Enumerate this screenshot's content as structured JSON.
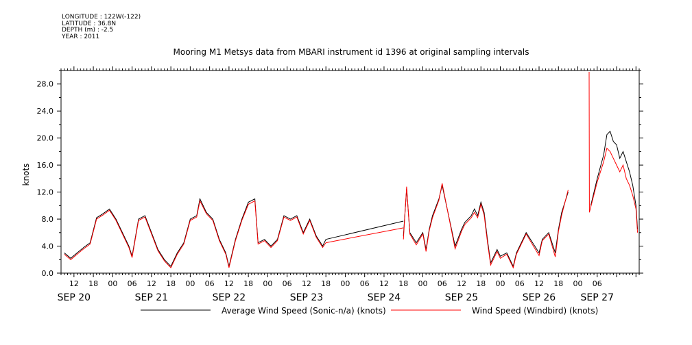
{
  "header": {
    "longitude": "LONGITUDE : 122W(-122)",
    "latitude": "LATITUDE : 36.8N",
    "depth": "DEPTH (m) : -2.5",
    "year": "YEAR : 2011"
  },
  "colors": {
    "average_series": "#000000",
    "windbird_series": "#ff0000"
  },
  "chart_data": {
    "type": "line",
    "title": "Mooring M1 Metsys data from MBARI instrument id 1396 at original sampling intervals",
    "ylabel": "knots",
    "xlabel": "",
    "ylim": [
      0,
      30
    ],
    "xlim": [
      "2011-09-20 08:00",
      "2011-09-27 19:00"
    ],
    "y_ticks": [
      "0.0",
      "4.0",
      "8.0",
      "12.0",
      "16.0",
      "20.0",
      "24.0",
      "28.0"
    ],
    "x_hour_ticks": [
      {
        "t": "2011-09-20 12:00",
        "label": "12"
      },
      {
        "t": "2011-09-20 18:00",
        "label": "18"
      },
      {
        "t": "2011-09-21 00:00",
        "label": "00"
      },
      {
        "t": "2011-09-21 06:00",
        "label": "06"
      },
      {
        "t": "2011-09-21 12:00",
        "label": "12"
      },
      {
        "t": "2011-09-21 18:00",
        "label": "18"
      },
      {
        "t": "2011-09-22 00:00",
        "label": "00"
      },
      {
        "t": "2011-09-22 06:00",
        "label": "06"
      },
      {
        "t": "2011-09-22 12:00",
        "label": "12"
      },
      {
        "t": "2011-09-22 18:00",
        "label": "18"
      },
      {
        "t": "2011-09-23 00:00",
        "label": "00"
      },
      {
        "t": "2011-09-23 06:00",
        "label": "06"
      },
      {
        "t": "2011-09-23 12:00",
        "label": "12"
      },
      {
        "t": "2011-09-23 18:00",
        "label": "18"
      },
      {
        "t": "2011-09-24 00:00",
        "label": "00"
      },
      {
        "t": "2011-09-24 06:00",
        "label": "06"
      },
      {
        "t": "2011-09-24 12:00",
        "label": "12"
      },
      {
        "t": "2011-09-24 18:00",
        "label": "18"
      },
      {
        "t": "2011-09-25 00:00",
        "label": "00"
      },
      {
        "t": "2011-09-25 06:00",
        "label": "06"
      },
      {
        "t": "2011-09-25 12:00",
        "label": "12"
      },
      {
        "t": "2011-09-25 18:00",
        "label": "18"
      },
      {
        "t": "2011-09-26 00:00",
        "label": "00"
      },
      {
        "t": "2011-09-26 06:00",
        "label": "06"
      },
      {
        "t": "2011-09-26 12:00",
        "label": "12"
      },
      {
        "t": "2011-09-26 18:00",
        "label": "18"
      },
      {
        "t": "2011-09-27 00:00",
        "label": "00"
      },
      {
        "t": "2011-09-27 06:00",
        "label": "06"
      }
    ],
    "x_day_labels": [
      {
        "t": "2011-09-20 12:00",
        "label": "SEP 20"
      },
      {
        "t": "2011-09-21 12:00",
        "label": "SEP 21"
      },
      {
        "t": "2011-09-22 12:00",
        "label": "SEP 22"
      },
      {
        "t": "2011-09-23 12:00",
        "label": "SEP 23"
      },
      {
        "t": "2011-09-24 12:00",
        "label": "SEP 24"
      },
      {
        "t": "2011-09-25 12:00",
        "label": "SEP 25"
      },
      {
        "t": "2011-09-26 12:00",
        "label": "SEP 26"
      },
      {
        "t": "2011-09-27 06:00",
        "label": "SEP 27"
      }
    ],
    "legend": [
      "Average Wind Speed (Sonic-n/a) (knots)",
      "Wind Speed (Windbird) (knots)"
    ],
    "series": [
      {
        "name": "Average Wind Speed (Sonic-n/a) (knots)",
        "segments": [
          [
            [
              "2011-09-20 09:00",
              3.0
            ],
            [
              "2011-09-20 11:00",
              2.2
            ],
            [
              "2011-09-20 13:00",
              3.0
            ],
            [
              "2011-09-20 15:00",
              3.8
            ],
            [
              "2011-09-20 17:00",
              4.5
            ],
            [
              "2011-09-20 19:00",
              8.2
            ],
            [
              "2011-09-20 21:00",
              8.8
            ],
            [
              "2011-09-20 23:00",
              9.5
            ],
            [
              "2011-09-21 01:00",
              8.0
            ],
            [
              "2011-09-21 03:00",
              6.0
            ],
            [
              "2011-09-21 05:00",
              4.0
            ],
            [
              "2011-09-21 06:00",
              2.5
            ],
            [
              "2011-09-21 08:00",
              8.0
            ],
            [
              "2011-09-21 10:00",
              8.5
            ],
            [
              "2011-09-21 12:00",
              6.0
            ],
            [
              "2011-09-21 14:00",
              3.5
            ],
            [
              "2011-09-21 16:00",
              2.0
            ],
            [
              "2011-09-21 18:00",
              1.0
            ],
            [
              "2011-09-21 20:00",
              3.0
            ],
            [
              "2011-09-21 22:00",
              4.5
            ],
            [
              "2011-09-22 00:00",
              8.0
            ],
            [
              "2011-09-22 02:00",
              8.5
            ],
            [
              "2011-09-22 03:00",
              11.0
            ],
            [
              "2011-09-22 05:00",
              9.0
            ],
            [
              "2011-09-22 07:00",
              8.0
            ],
            [
              "2011-09-22 09:00",
              5.0
            ],
            [
              "2011-09-22 11:00",
              3.0
            ],
            [
              "2011-09-22 12:00",
              1.0
            ],
            [
              "2011-09-22 14:00",
              5.0
            ],
            [
              "2011-09-22 16:00",
              8.0
            ],
            [
              "2011-09-22 18:00",
              10.5
            ],
            [
              "2011-09-22 20:00",
              11.0
            ],
            [
              "2011-09-22 21:00",
              4.5
            ],
            [
              "2011-09-22 23:00",
              5.0
            ],
            [
              "2011-09-23 01:00",
              4.0
            ],
            [
              "2011-09-23 03:00",
              5.0
            ],
            [
              "2011-09-23 05:00",
              8.5
            ],
            [
              "2011-09-23 07:00",
              8.0
            ],
            [
              "2011-09-23 09:00",
              8.5
            ],
            [
              "2011-09-23 11:00",
              6.0
            ],
            [
              "2011-09-23 13:00",
              8.0
            ],
            [
              "2011-09-23 15:00",
              5.5
            ],
            [
              "2011-09-23 17:00",
              4.0
            ],
            [
              "2011-09-23 18:00",
              5.0
            ]
          ],
          [
            [
              "2011-09-23 18:00",
              5.0
            ],
            [
              "2011-09-24 18:00",
              7.7
            ]
          ],
          [
            [
              "2011-09-24 18:00",
              5.5
            ],
            [
              "2011-09-24 19:00",
              12.5
            ],
            [
              "2011-09-24 20:00",
              6.0
            ],
            [
              "2011-09-24 22:00",
              4.5
            ],
            [
              "2011-09-25 00:00",
              6.0
            ],
            [
              "2011-09-25 01:00",
              3.5
            ],
            [
              "2011-09-25 02:00",
              6.5
            ],
            [
              "2011-09-25 03:00",
              8.5
            ],
            [
              "2011-09-25 05:00",
              11.0
            ],
            [
              "2011-09-25 06:00",
              13.0
            ],
            [
              "2011-09-25 10:00",
              4.0
            ],
            [
              "2011-09-25 12:00",
              6.5
            ],
            [
              "2011-09-25 13:00",
              7.5
            ],
            [
              "2011-09-25 15:00",
              8.5
            ],
            [
              "2011-09-25 16:00",
              9.5
            ],
            [
              "2011-09-25 17:00",
              8.5
            ],
            [
              "2011-09-25 18:00",
              10.5
            ],
            [
              "2011-09-25 19:00",
              9.0
            ],
            [
              "2011-09-25 20:00",
              5.0
            ],
            [
              "2011-09-25 21:00",
              1.5
            ],
            [
              "2011-09-25 23:00",
              3.5
            ],
            [
              "2011-09-26 00:00",
              2.5
            ],
            [
              "2011-09-26 02:00",
              3.0
            ],
            [
              "2011-09-26 04:00",
              1.0
            ],
            [
              "2011-09-26 05:00",
              3.0
            ],
            [
              "2011-09-26 07:00",
              5.0
            ],
            [
              "2011-09-26 08:00",
              6.0
            ],
            [
              "2011-09-26 10:00",
              4.5
            ],
            [
              "2011-09-26 12:00",
              3.0
            ],
            [
              "2011-09-26 13:00",
              5.0
            ],
            [
              "2011-09-26 15:00",
              6.0
            ],
            [
              "2011-09-26 17:00",
              3.0
            ],
            [
              "2011-09-26 18:00",
              6.5
            ],
            [
              "2011-09-26 19:00",
              9.0
            ],
            [
              "2011-09-26 21:00",
              12.0
            ]
          ],
          [
            [
              "2011-09-27 04:00",
              10.0
            ],
            [
              "2011-09-27 06:00",
              14.0
            ],
            [
              "2011-09-27 08:00",
              17.5
            ],
            [
              "2011-09-27 09:00",
              20.5
            ],
            [
              "2011-09-27 10:00",
              21.0
            ],
            [
              "2011-09-27 11:00",
              19.5
            ],
            [
              "2011-09-27 12:00",
              19.0
            ],
            [
              "2011-09-27 13:00",
              17.0
            ],
            [
              "2011-09-27 14:00",
              18.0
            ],
            [
              "2011-09-27 15:00",
              16.5
            ],
            [
              "2011-09-27 16:00",
              15.0
            ],
            [
              "2011-09-27 17:00",
              13.0
            ],
            [
              "2011-09-27 18:00",
              10.0
            ],
            [
              "2011-09-27 18:30",
              6.5
            ]
          ]
        ]
      },
      {
        "name": "Wind Speed (Windbird) (knots)",
        "segments": [
          [
            [
              "2011-09-20 09:00",
              2.8
            ],
            [
              "2011-09-20 11:00",
              2.0
            ],
            [
              "2011-09-20 13:00",
              2.8
            ],
            [
              "2011-09-20 15:00",
              3.6
            ],
            [
              "2011-09-20 17:00",
              4.3
            ],
            [
              "2011-09-20 19:00",
              8.0
            ],
            [
              "2011-09-20 21:00",
              8.6
            ],
            [
              "2011-09-20 23:00",
              9.3
            ],
            [
              "2011-09-21 01:00",
              7.8
            ],
            [
              "2011-09-21 03:00",
              5.8
            ],
            [
              "2011-09-21 05:00",
              3.8
            ],
            [
              "2011-09-21 06:00",
              2.3
            ],
            [
              "2011-09-21 08:00",
              7.8
            ],
            [
              "2011-09-21 10:00",
              8.3
            ],
            [
              "2011-09-21 12:00",
              5.8
            ],
            [
              "2011-09-21 14:00",
              3.3
            ],
            [
              "2011-09-21 16:00",
              1.8
            ],
            [
              "2011-09-21 18:00",
              0.8
            ],
            [
              "2011-09-21 20:00",
              2.8
            ],
            [
              "2011-09-21 22:00",
              4.3
            ],
            [
              "2011-09-22 00:00",
              7.8
            ],
            [
              "2011-09-22 02:00",
              8.3
            ],
            [
              "2011-09-22 03:00",
              10.7
            ],
            [
              "2011-09-22 05:00",
              8.8
            ],
            [
              "2011-09-22 07:00",
              7.8
            ],
            [
              "2011-09-22 09:00",
              4.8
            ],
            [
              "2011-09-22 11:00",
              2.8
            ],
            [
              "2011-09-22 12:00",
              0.8
            ],
            [
              "2011-09-22 14:00",
              4.8
            ],
            [
              "2011-09-22 16:00",
              7.8
            ],
            [
              "2011-09-22 18:00",
              10.2
            ],
            [
              "2011-09-22 20:00",
              10.7
            ],
            [
              "2011-09-22 21:00",
              4.3
            ],
            [
              "2011-09-22 23:00",
              4.8
            ],
            [
              "2011-09-23 01:00",
              3.8
            ],
            [
              "2011-09-23 03:00",
              4.8
            ],
            [
              "2011-09-23 05:00",
              8.3
            ],
            [
              "2011-09-23 07:00",
              7.8
            ],
            [
              "2011-09-23 09:00",
              8.3
            ],
            [
              "2011-09-23 11:00",
              5.8
            ],
            [
              "2011-09-23 13:00",
              7.8
            ],
            [
              "2011-09-23 15:00",
              5.3
            ],
            [
              "2011-09-23 17:00",
              3.8
            ],
            [
              "2011-09-23 18:00",
              4.5
            ]
          ],
          [
            [
              "2011-09-23 18:00",
              4.5
            ],
            [
              "2011-09-24 18:00",
              6.7
            ]
          ],
          [
            [
              "2011-09-24 18:00",
              5.0
            ],
            [
              "2011-09-24 19:00",
              12.8
            ],
            [
              "2011-09-24 20:00",
              5.8
            ],
            [
              "2011-09-24 22:00",
              4.2
            ],
            [
              "2011-09-25 00:00",
              5.8
            ],
            [
              "2011-09-25 01:00",
              3.2
            ],
            [
              "2011-09-25 02:00",
              6.3
            ],
            [
              "2011-09-25 03:00",
              8.2
            ],
            [
              "2011-09-25 05:00",
              10.8
            ],
            [
              "2011-09-25 06:00",
              13.3
            ],
            [
              "2011-09-25 10:00",
              3.6
            ],
            [
              "2011-09-25 12:00",
              6.2
            ],
            [
              "2011-09-25 13:00",
              7.2
            ],
            [
              "2011-09-25 15:00",
              8.2
            ],
            [
              "2011-09-25 16:00",
              9.0
            ],
            [
              "2011-09-25 17:00",
              8.2
            ],
            [
              "2011-09-25 18:00",
              10.2
            ],
            [
              "2011-09-25 19:00",
              8.6
            ],
            [
              "2011-09-25 20:00",
              4.6
            ],
            [
              "2011-09-25 21:00",
              1.2
            ],
            [
              "2011-09-25 23:00",
              3.2
            ],
            [
              "2011-09-26 00:00",
              2.2
            ],
            [
              "2011-09-26 02:00",
              2.8
            ],
            [
              "2011-09-26 04:00",
              0.8
            ],
            [
              "2011-09-26 05:00",
              2.8
            ],
            [
              "2011-09-26 07:00",
              4.8
            ],
            [
              "2011-09-26 08:00",
              5.8
            ],
            [
              "2011-09-26 10:00",
              4.2
            ],
            [
              "2011-09-26 12:00",
              2.6
            ],
            [
              "2011-09-26 13:00",
              4.8
            ],
            [
              "2011-09-26 15:00",
              5.8
            ],
            [
              "2011-09-26 17:00",
              2.4
            ],
            [
              "2011-09-26 18:00",
              6.2
            ],
            [
              "2011-09-26 19:00",
              8.6
            ],
            [
              "2011-09-26 21:00",
              12.3
            ]
          ],
          [
            [
              "2011-09-27 03:30",
              29.8
            ],
            [
              "2011-09-27 03:35",
              9.0
            ],
            [
              "2011-09-27 06:00",
              13.5
            ],
            [
              "2011-09-27 08:00",
              16.5
            ],
            [
              "2011-09-27 09:00",
              18.5
            ],
            [
              "2011-09-27 10:00",
              18.0
            ],
            [
              "2011-09-27 11:00",
              17.0
            ],
            [
              "2011-09-27 12:00",
              16.0
            ],
            [
              "2011-09-27 13:00",
              15.0
            ],
            [
              "2011-09-27 14:00",
              16.0
            ],
            [
              "2011-09-27 15:00",
              14.0
            ],
            [
              "2011-09-27 16:00",
              13.0
            ],
            [
              "2011-09-27 17:00",
              11.5
            ],
            [
              "2011-09-27 18:00",
              9.5
            ],
            [
              "2011-09-27 18:30",
              6.0
            ]
          ]
        ]
      }
    ]
  }
}
